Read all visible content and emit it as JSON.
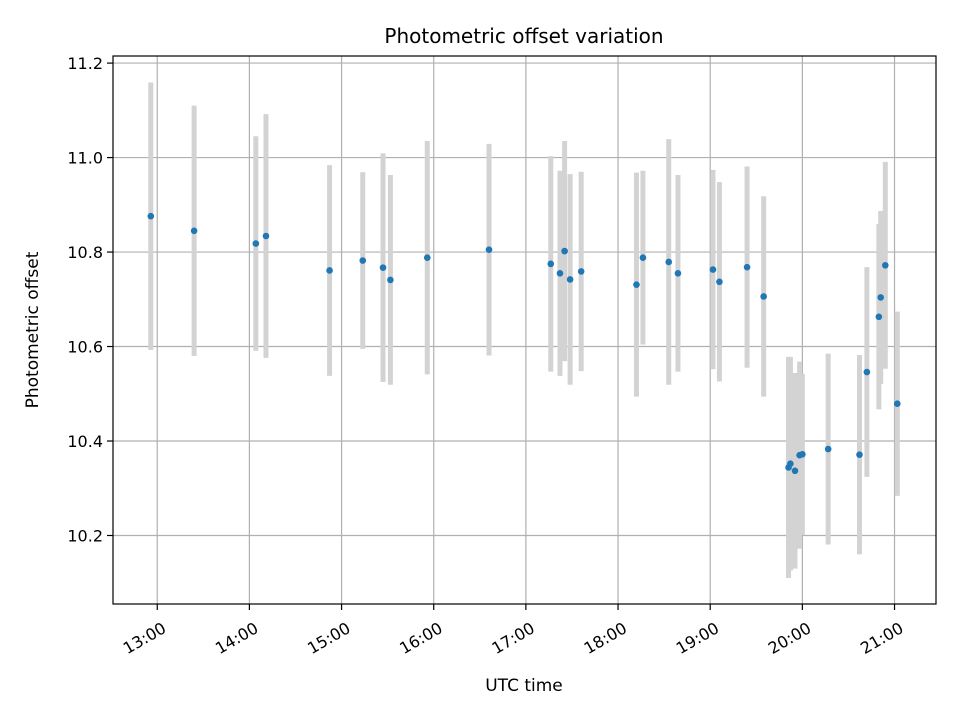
{
  "chart_data": {
    "type": "scatter",
    "title": "Photometric offset variation",
    "xlabel": "UTC time",
    "ylabel": "Photometric offset",
    "x_unit": "hours UTC",
    "xlim": [
      12.52,
      21.45
    ],
    "ylim": [
      10.055,
      11.215
    ],
    "x_ticks": [
      {
        "value": 13,
        "label": "13:00"
      },
      {
        "value": 14,
        "label": "14:00"
      },
      {
        "value": 15,
        "label": "15:00"
      },
      {
        "value": 16,
        "label": "16:00"
      },
      {
        "value": 17,
        "label": "17:00"
      },
      {
        "value": 18,
        "label": "18:00"
      },
      {
        "value": 19,
        "label": "19:00"
      },
      {
        "value": 20,
        "label": "20:00"
      },
      {
        "value": 21,
        "label": "21:00"
      }
    ],
    "y_ticks": [
      {
        "value": 10.2,
        "label": "10.2"
      },
      {
        "value": 10.4,
        "label": "10.4"
      },
      {
        "value": 10.6,
        "label": "10.6"
      },
      {
        "value": 10.8,
        "label": "10.8"
      },
      {
        "value": 11.0,
        "label": "11.0"
      },
      {
        "value": 11.2,
        "label": "11.2"
      }
    ],
    "grid": true,
    "marker_color": "#1f77b4",
    "errorbar_color": "#d3d3d3",
    "points": [
      {
        "x": 12.93,
        "y": 10.876,
        "err": 0.283
      },
      {
        "x": 13.4,
        "y": 10.845,
        "err": 0.265
      },
      {
        "x": 14.07,
        "y": 10.818,
        "err": 0.227
      },
      {
        "x": 14.18,
        "y": 10.834,
        "err": 0.258
      },
      {
        "x": 14.87,
        "y": 10.761,
        "err": 0.223
      },
      {
        "x": 15.23,
        "y": 10.782,
        "err": 0.187
      },
      {
        "x": 15.45,
        "y": 10.767,
        "err": 0.242
      },
      {
        "x": 15.53,
        "y": 10.741,
        "err": 0.222
      },
      {
        "x": 15.93,
        "y": 10.788,
        "err": 0.247
      },
      {
        "x": 16.6,
        "y": 10.805,
        "err": 0.224
      },
      {
        "x": 17.27,
        "y": 10.775,
        "err": 0.228
      },
      {
        "x": 17.37,
        "y": 10.755,
        "err": 0.217
      },
      {
        "x": 17.42,
        "y": 10.802,
        "err": 0.233
      },
      {
        "x": 17.48,
        "y": 10.742,
        "err": 0.223
      },
      {
        "x": 17.6,
        "y": 10.759,
        "err": 0.211
      },
      {
        "x": 18.2,
        "y": 10.731,
        "err": 0.237
      },
      {
        "x": 18.27,
        "y": 10.788,
        "err": 0.184
      },
      {
        "x": 18.55,
        "y": 10.779,
        "err": 0.26
      },
      {
        "x": 18.65,
        "y": 10.755,
        "err": 0.208
      },
      {
        "x": 19.03,
        "y": 10.763,
        "err": 0.211
      },
      {
        "x": 19.1,
        "y": 10.737,
        "err": 0.211
      },
      {
        "x": 19.4,
        "y": 10.768,
        "err": 0.213
      },
      {
        "x": 19.58,
        "y": 10.706,
        "err": 0.212
      },
      {
        "x": 19.85,
        "y": 10.344,
        "err": 0.234
      },
      {
        "x": 19.87,
        "y": 10.352,
        "err": 0.226
      },
      {
        "x": 19.92,
        "y": 10.337,
        "err": 0.207
      },
      {
        "x": 19.97,
        "y": 10.37,
        "err": 0.198
      },
      {
        "x": 20.0,
        "y": 10.372,
        "err": 0.17
      },
      {
        "x": 20.28,
        "y": 10.383,
        "err": 0.202
      },
      {
        "x": 20.62,
        "y": 10.371,
        "err": 0.211
      },
      {
        "x": 20.7,
        "y": 10.546,
        "err": 0.222
      },
      {
        "x": 20.83,
        "y": 10.663,
        "err": 0.196
      },
      {
        "x": 20.85,
        "y": 10.704,
        "err": 0.183
      },
      {
        "x": 20.9,
        "y": 10.772,
        "err": 0.219
      },
      {
        "x": 21.03,
        "y": 10.479,
        "err": 0.195
      }
    ]
  }
}
